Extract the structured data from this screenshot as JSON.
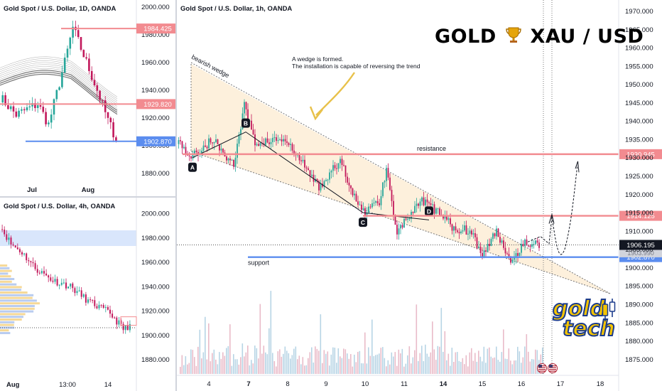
{
  "brand_title": {
    "left": "GOLD",
    "right": "XAU / USD",
    "icon": "trophy-icon"
  },
  "logo": {
    "line1": "gold",
    "line2": "tech",
    "icon": "candlestick-icon"
  },
  "colors": {
    "up": "#26a69a",
    "down": "#c2185b",
    "resistance": "#f28b90",
    "support": "#5b8def",
    "price_pill": "#131722",
    "wedge_fill": "#fdf0dc",
    "arrow": "#e8c14a"
  },
  "main_chart": {
    "title": "Gold Spot / U.S. Dollar, 1h, OANDA",
    "y_ticks": [
      "1970.000",
      "1965.000",
      "1960.000",
      "1955.000",
      "1950.000",
      "1945.000",
      "1940.000",
      "1935.000",
      "1930.000",
      "1925.000",
      "1920.000",
      "1915.000",
      "1910.000",
      "1905.000",
      "1900.000",
      "1895.000",
      "1890.000",
      "1885.000",
      "1880.000",
      "1875.000"
    ],
    "x_ticks": [
      {
        "label": "4",
        "bold": false
      },
      {
        "label": "7",
        "bold": true
      },
      {
        "label": "8",
        "bold": false
      },
      {
        "label": "9",
        "bold": false
      },
      {
        "label": "10",
        "bold": false
      },
      {
        "label": "11",
        "bold": false
      },
      {
        "label": "14",
        "bold": true
      },
      {
        "label": "15",
        "bold": false
      },
      {
        "label": "16",
        "bold": false
      },
      {
        "label": "17",
        "bold": false
      },
      {
        "label": "18",
        "bold": false
      }
    ],
    "levels": {
      "resistance_upper": "1930.945",
      "resistance_lower": "1914.125",
      "support": "1902.870",
      "current_price": "1906.195",
      "hidden_label": "1903.990"
    },
    "labels": {
      "resistance": "resistance",
      "support": "support",
      "wedge": "bearish wedge"
    },
    "points": [
      "A",
      "B",
      "C",
      "D"
    ],
    "annotation": [
      "A wedge is formed.",
      "The installation is capable of reversing the trend"
    ],
    "events": [
      "us-flag-icon",
      "us-flag-icon"
    ]
  },
  "chart_data": [
    {
      "type": "candlestick",
      "title": "Gold Spot / U.S. Dollar, 1D, OANDA",
      "x_ticks": [
        "Jul",
        "Aug"
      ],
      "y_ticks": [
        "2000.000",
        "1980.000",
        "1960.000",
        "1940.000",
        "1920.000",
        "1900.000",
        "1880.000"
      ],
      "ylim": [
        1873,
        2005
      ],
      "levels": {
        "upper": "1984.425",
        "middle": "1929.820",
        "lower": "1902.870"
      }
    },
    {
      "type": "candlestick",
      "title": "Gold Spot / U.S. Dollar, 4h, OANDA",
      "x_ticks": [
        "Aug",
        "13:00",
        "14"
      ],
      "y_ticks": [
        "2000.000",
        "1980.000",
        "1960.000",
        "1940.000",
        "1920.000",
        "1900.000",
        "1880.000"
      ],
      "ylim": [
        1868,
        2013
      ]
    },
    {
      "type": "candlestick",
      "title": "Gold Spot / U.S. Dollar, 1h, OANDA",
      "ylim": [
        1871,
        1973
      ],
      "levels": {
        "resistance_upper": 1930.945,
        "resistance_lower": 1914.125,
        "support": 1902.87,
        "current": 1906.195
      },
      "wedge": {
        "A": 1930,
        "B": 1937,
        "C": 1915,
        "D": 1913
      }
    }
  ]
}
